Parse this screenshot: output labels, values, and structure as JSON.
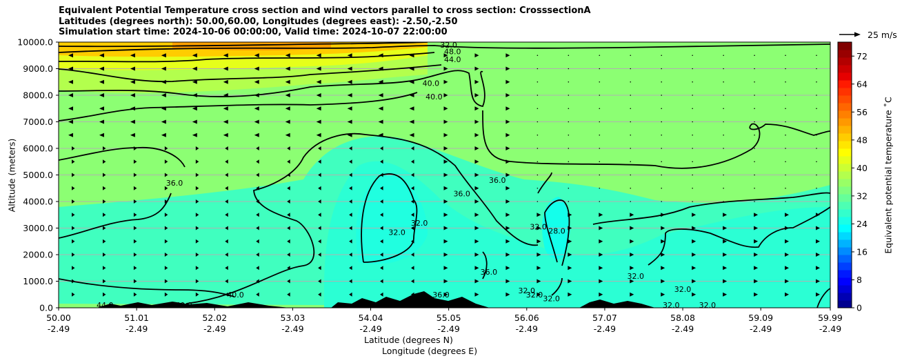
{
  "title": {
    "line1": "Equivalent Potential Temperature cross section and wind vectors parallel to cross section: CrosssectionA",
    "line2": "Latitudes (degrees north): 50.00,60.00, Longitudes (degrees east): -2.50,-2.50",
    "line3": "Simulation start time: 2024-10-06 00:00:00, Valid time: 2024-10-07 22:00:00"
  },
  "axes": {
    "ylabel": "Altitude (meters)",
    "xlabel_lat": "Latitude (degrees N)",
    "xlabel_lon": "Longitude (degrees E)"
  },
  "colorbar": {
    "label": "Equivalent potential temperature ˚C",
    "ticks": [
      "0",
      "8",
      "16",
      "24",
      "32",
      "40",
      "48",
      "56",
      "64",
      "72"
    ],
    "range": [
      0,
      76
    ],
    "colors": [
      "#00008f",
      "#0000b3",
      "#0000d9",
      "#0000ff",
      "#0019ff",
      "#0040ff",
      "#0066ff",
      "#008cff",
      "#00b3ff",
      "#00d9ff",
      "#00ffff",
      "#1affe6",
      "#33ffcc",
      "#4dffb3",
      "#66ff99",
      "#80ff80",
      "#99ff66",
      "#b3ff4d",
      "#ccff33",
      "#e6ff1a",
      "#ffff00",
      "#ffe600",
      "#ffcc00",
      "#ffb300",
      "#ff9900",
      "#ff8000",
      "#ff6600",
      "#ff4d00",
      "#ff3300",
      "#ff1a00",
      "#e60000",
      "#cc0000",
      "#b30000",
      "#990000",
      "#800000"
    ]
  },
  "reference_vector": {
    "label": "25 m/s"
  },
  "chart_data": {
    "type": "heatmap",
    "title": "Equivalent Potential Temperature cross section and wind vectors parallel to cross section: CrosssectionA",
    "x_ticks": [
      {
        "lat": "50.00",
        "lon": "-2.49"
      },
      {
        "lat": "51.01",
        "lon": "-2.49"
      },
      {
        "lat": "52.02",
        "lon": "-2.49"
      },
      {
        "lat": "53.03",
        "lon": "-2.49"
      },
      {
        "lat": "54.04",
        "lon": "-2.49"
      },
      {
        "lat": "55.05",
        "lon": "-2.49"
      },
      {
        "lat": "56.06",
        "lon": "-2.49"
      },
      {
        "lat": "57.07",
        "lon": "-2.49"
      },
      {
        "lat": "58.08",
        "lon": "-2.49"
      },
      {
        "lat": "59.09",
        "lon": "-2.49"
      },
      {
        "lat": "59.99",
        "lon": "-2.49"
      }
    ],
    "y_ticks": [
      "0.0",
      "1000.0",
      "2000.0",
      "3000.0",
      "4000.0",
      "5000.0",
      "6000.0",
      "7000.0",
      "8000.0",
      "9000.0",
      "10000.0"
    ],
    "xlim": [
      50.0,
      59.99
    ],
    "ylim": [
      0,
      10000
    ],
    "grid": "horizontal",
    "contour_labels": [
      {
        "text": "32.0",
        "lat": 55.05,
        "z": 9900
      },
      {
        "text": "48.0",
        "lat": 55.1,
        "z": 9650
      },
      {
        "text": "44.0",
        "lat": 55.1,
        "z": 9350
      },
      {
        "text": "40.0",
        "lat": 54.82,
        "z": 8450
      },
      {
        "text": "40.0",
        "lat": 54.86,
        "z": 7950
      },
      {
        "text": "36.0",
        "lat": 51.5,
        "z": 4700
      },
      {
        "text": "36.0",
        "lat": 55.22,
        "z": 4300
      },
      {
        "text": "36.0",
        "lat": 55.68,
        "z": 4800
      },
      {
        "text": "32.0",
        "lat": 54.38,
        "z": 2850
      },
      {
        "text": "32.0",
        "lat": 54.67,
        "z": 3200
      },
      {
        "text": "32.0",
        "lat": 56.21,
        "z": 3050
      },
      {
        "text": "28.0",
        "lat": 56.45,
        "z": 2900
      },
      {
        "text": "36.0",
        "lat": 55.57,
        "z": 1350
      },
      {
        "text": "32.0",
        "lat": 57.47,
        "z": 1200
      },
      {
        "text": "40.0",
        "lat": 52.29,
        "z": 500
      },
      {
        "text": "32.0",
        "lat": 56.06,
        "z": 650
      },
      {
        "text": "32.0",
        "lat": 56.16,
        "z": 500
      },
      {
        "text": "32.0",
        "lat": 56.38,
        "z": 350
      },
      {
        "text": "32.0",
        "lat": 58.08,
        "z": 700
      },
      {
        "text": "32.0",
        "lat": 57.93,
        "z": 100
      },
      {
        "text": "32.0",
        "lat": 58.4,
        "z": 100
      },
      {
        "text": "44.0",
        "lat": 50.6,
        "z": 100
      },
      {
        "text": "40.0",
        "lat": 51.62,
        "z": 100
      },
      {
        "text": "36.0",
        "lat": 54.95,
        "z": 500
      }
    ],
    "wind_rows_z": [
      500,
      1000,
      1500,
      2000,
      2500,
      3000,
      3500,
      4000,
      4500,
      5000,
      5500,
      6000,
      6500,
      7000,
      7500,
      8000,
      8500,
      9000,
      9500
    ]
  }
}
